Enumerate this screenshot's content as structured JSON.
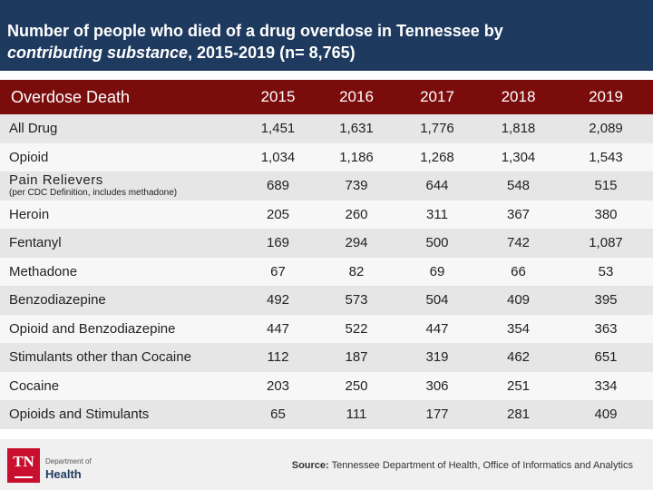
{
  "header": {
    "title_line1": "Number of people who died of a drug overdose in Tennessee by",
    "title_line2_italic": "contributing substance",
    "title_line2_rest": ", 2015-2019 (n= 8,765)"
  },
  "table": {
    "label_header": "Overdose Death",
    "years": [
      "2015",
      "2016",
      "2017",
      "2018",
      "2019"
    ],
    "rows": [
      {
        "label": "All Drug",
        "values": [
          "1,451",
          "1,631",
          "1,776",
          "1,818",
          "2,089"
        ]
      },
      {
        "label": "Opioid",
        "values": [
          "1,034",
          "1,186",
          "1,268",
          "1,304",
          "1,543"
        ]
      },
      {
        "label": "Pain Relievers",
        "sublabel": "(per CDC Definition, includes methadone)",
        "values": [
          "689",
          "739",
          "644",
          "548",
          "515"
        ]
      },
      {
        "label": "Heroin",
        "values": [
          "205",
          "260",
          "311",
          "367",
          "380"
        ]
      },
      {
        "label": "Fentanyl",
        "values": [
          "169",
          "294",
          "500",
          "742",
          "1,087"
        ]
      },
      {
        "label": "Methadone",
        "values": [
          "67",
          "82",
          "69",
          "66",
          "53"
        ]
      },
      {
        "label": "Benzodiazepine",
        "values": [
          "492",
          "573",
          "504",
          "409",
          "395"
        ]
      },
      {
        "label": "Opioid and Benzodiazepine",
        "values": [
          "447",
          "522",
          "447",
          "354",
          "363"
        ]
      },
      {
        "label": "Stimulants other than Cocaine",
        "values": [
          "112",
          "187",
          "319",
          "462",
          "651"
        ]
      },
      {
        "label": "Cocaine",
        "values": [
          "203",
          "250",
          "306",
          "251",
          "334"
        ]
      },
      {
        "label": "Opioids and Stimulants",
        "values": [
          "65",
          "111",
          "177",
          "281",
          "409"
        ]
      }
    ]
  },
  "logo": {
    "badge": "TN",
    "dept": "Department of",
    "name": "Health"
  },
  "source": {
    "label": "Source:",
    "text": " Tennessee Department of Health, Office of Informatics and Analytics"
  },
  "colors": {
    "header_bg": "#1f3a5f",
    "table_header_bg": "#7b0c0c",
    "logo_red": "#c8102e"
  }
}
